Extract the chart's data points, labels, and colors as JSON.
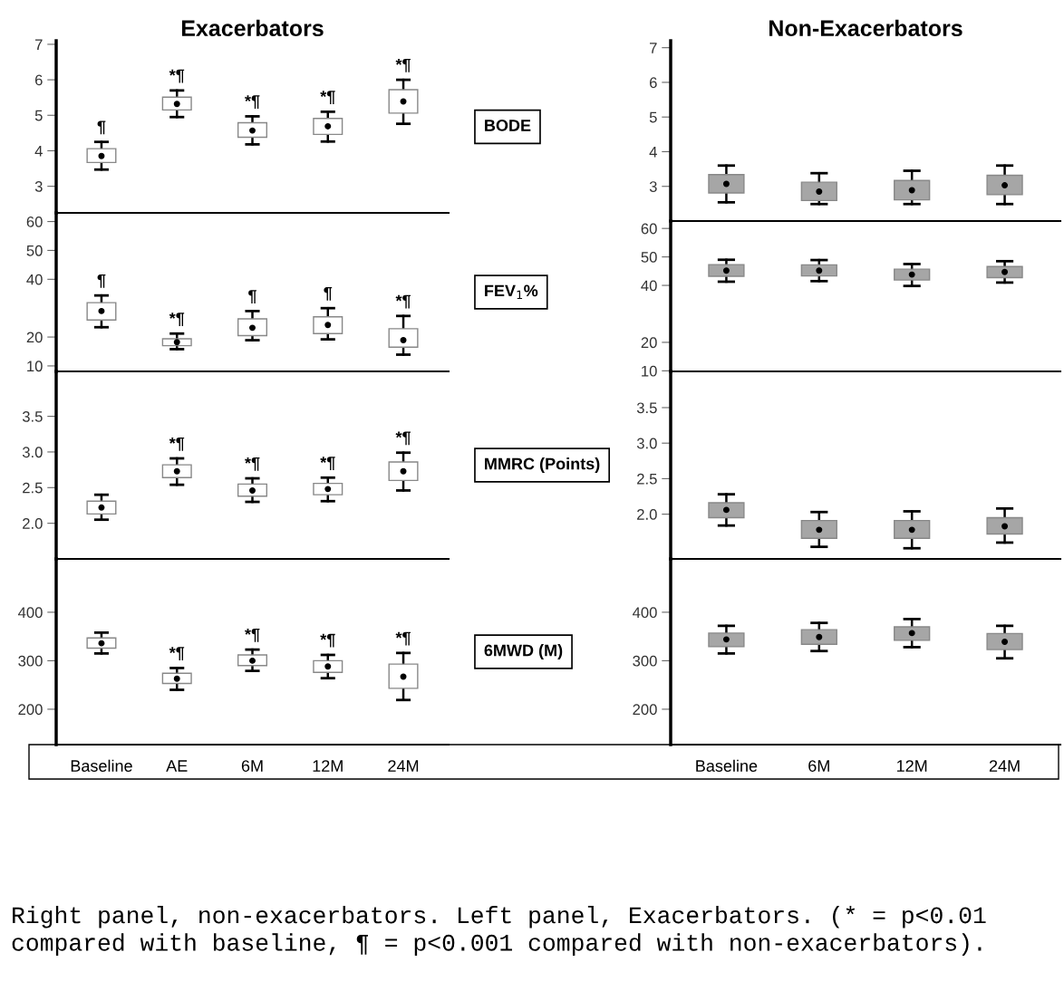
{
  "chart_data": [
    {
      "type": "box",
      "title": "Exacerbators",
      "ylabel": "BODE",
      "categories": [
        "Baseline",
        "AE",
        "6M",
        "12M",
        "24M"
      ],
      "colors": [
        "#ffffff",
        "#ffffff",
        "#ffffff",
        "#ffffff",
        "#ffffff"
      ],
      "tick_labels": "y",
      "ylim": [
        2.25,
        7.1
      ],
      "yticks": [
        3,
        4,
        5,
        6,
        7
      ],
      "boxes": [
        {
          "low": 3.47,
          "q1": 3.67,
          "median": 3.85,
          "q3": 4.06,
          "high": 4.25
        },
        {
          "low": 4.95,
          "q1": 5.15,
          "median": 5.32,
          "q3": 5.51,
          "high": 5.7
        },
        {
          "low": 4.18,
          "q1": 4.38,
          "median": 4.57,
          "q3": 4.79,
          "high": 4.97
        },
        {
          "low": 4.26,
          "q1": 4.46,
          "median": 4.69,
          "q3": 4.91,
          "high": 5.1
        },
        {
          "low": 4.76,
          "q1": 5.06,
          "median": 5.39,
          "q3": 5.72,
          "high": 6.0
        }
      ],
      "annotations": [
        {
          "text": "¶",
          "x": "Baseline",
          "y": 4.25
        },
        {
          "text": "*¶",
          "x": "AE",
          "y": 5.7
        },
        {
          "text": "*¶",
          "x": "6M",
          "y": 4.97
        },
        {
          "text": "*¶",
          "x": "12M",
          "y": 5.1
        },
        {
          "text": "*¶",
          "x": "24M",
          "y": 6.0
        },
        "Right panel, non-exacerbators. Left panel, Exacerbators. (* = p<0.01 compared with baseline, ¶ = p<0.001 compared with non-exacerbators)."
      ]
    },
    {
      "type": "box",
      "title": "Non-Exacerbators",
      "categories": [
        "Baseline",
        "6M",
        "12M",
        "24M"
      ],
      "colors": [
        "#a6a6a6",
        "#a6a6a6",
        "#a6a6a6",
        "#a6a6a6"
      ],
      "tick_labels": "y",
      "ylim": [
        2.0,
        7.2
      ],
      "yticks": [
        3,
        4,
        5,
        6,
        7
      ],
      "boxes": [
        {
          "low": 2.54,
          "q1": 2.81,
          "median": 3.07,
          "q3": 3.34,
          "high": 3.6
        },
        {
          "low": 2.49,
          "q1": 2.59,
          "median": 2.85,
          "q3": 3.12,
          "high": 3.38
        },
        {
          "low": 2.49,
          "q1": 2.61,
          "median": 2.89,
          "q3": 3.17,
          "high": 3.45
        },
        {
          "low": 2.49,
          "q1": 2.76,
          "median": 3.03,
          "q3": 3.32,
          "high": 3.6
        }
      ]
    },
    {
      "type": "box",
      "ylabel": "FEV$_{1}$%",
      "categories": [
        "Baseline",
        "AE",
        "6M",
        "12M",
        "24M"
      ],
      "colors": [
        "#ffffff",
        "#ffffff",
        "#ffffff",
        "#ffffff",
        "#ffffff"
      ],
      "tick_labels": "y",
      "ylim": [
        8.1,
        63
      ],
      "yticks": [
        10,
        20,
        40,
        50,
        60
      ],
      "boxes": [
        {
          "low": 23.4,
          "q1": 25.9,
          "median": 29.0,
          "q3": 31.9,
          "high": 34.4
        },
        {
          "low": 15.8,
          "q1": 17.0,
          "median": 18.2,
          "q3": 19.4,
          "high": 21.2
        },
        {
          "low": 18.9,
          "q1": 20.5,
          "median": 23.2,
          "q3": 26.3,
          "high": 29.0
        },
        {
          "low": 19.2,
          "q1": 21.2,
          "median": 24.2,
          "q3": 27.0,
          "high": 30.0
        },
        {
          "low": 13.9,
          "q1": 16.5,
          "median": 18.9,
          "q3": 22.9,
          "high": 27.3
        }
      ],
      "annotations": [
        {
          "text": "¶",
          "x": "Baseline",
          "y": 34.4
        },
        {
          "text": "*¶",
          "x": "AE",
          "y": 21.2
        },
        {
          "text": "¶",
          "x": "6M",
          "y": 29.0
        },
        {
          "text": "¶",
          "x": "12M",
          "y": 30.0
        },
        {
          "text": "*¶",
          "x": "24M",
          "y": 27.3
        }
      ]
    },
    {
      "type": "box",
      "categories": [
        "Baseline",
        "6M",
        "12M",
        "24M"
      ],
      "colors": [
        "#a6a6a6",
        "#a6a6a6",
        "#a6a6a6",
        "#a6a6a6"
      ],
      "tick_labels": "y",
      "ylim": [
        9.8,
        62.6
      ],
      "yticks": [
        10,
        20,
        40,
        50,
        60
      ],
      "boxes": [
        {
          "low": 41.3,
          "q1": 43.2,
          "median": 45.2,
          "q3": 47.3,
          "high": 49.0
        },
        {
          "low": 41.5,
          "q1": 43.3,
          "median": 45.2,
          "q3": 47.2,
          "high": 48.9
        },
        {
          "low": 39.8,
          "q1": 41.9,
          "median": 43.8,
          "q3": 45.7,
          "high": 47.5
        },
        {
          "low": 41.0,
          "q1": 42.7,
          "median": 44.7,
          "q3": 46.6,
          "high": 48.5
        }
      ]
    },
    {
      "type": "box",
      "ylabel": "MMRC (Points)",
      "categories": [
        "Baseline",
        "AE",
        "6M",
        "12M",
        "24M"
      ],
      "colors": [
        "#ffffff",
        "#ffffff",
        "#ffffff",
        "#ffffff",
        "#ffffff"
      ],
      "tick_labels": "y",
      "ylim": [
        1.5,
        4.13
      ],
      "yticks": [
        {
          "value": 2,
          "label": "2.0"
        },
        {
          "value": 2.5,
          "label": "2.5"
        },
        {
          "value": 3,
          "label": "3.0"
        },
        {
          "value": 3.5,
          "label": "3.5"
        }
      ],
      "boxes": [
        {
          "low": 2.05,
          "q1": 2.13,
          "median": 2.22,
          "q3": 2.31,
          "high": 2.4
        },
        {
          "low": 2.54,
          "q1": 2.64,
          "median": 2.73,
          "q3": 2.82,
          "high": 2.91
        },
        {
          "low": 2.3,
          "q1": 2.38,
          "median": 2.46,
          "q3": 2.55,
          "high": 2.63
        },
        {
          "low": 2.31,
          "q1": 2.4,
          "median": 2.48,
          "q3": 2.56,
          "high": 2.64
        },
        {
          "low": 2.46,
          "q1": 2.6,
          "median": 2.73,
          "q3": 2.86,
          "high": 2.99
        }
      ],
      "annotations": [
        {
          "text": "*¶",
          "x": "AE",
          "y": 2.91
        },
        {
          "text": "*¶",
          "x": "6M",
          "y": 2.63
        },
        {
          "text": "*¶",
          "x": "12M",
          "y": 2.64
        },
        {
          "text": "*¶",
          "x": "24M",
          "y": 2.99
        }
      ]
    },
    {
      "type": "box",
      "categories": [
        "Baseline",
        "6M",
        "12M",
        "24M"
      ],
      "colors": [
        "#a6a6a6",
        "#a6a6a6",
        "#a6a6a6",
        "#a6a6a6"
      ],
      "tick_labels": "y",
      "ylim": [
        1.37,
        4.01
      ],
      "yticks": [
        {
          "value": 2,
          "label": "2.0"
        },
        {
          "value": 2.5,
          "label": "2.5"
        },
        {
          "value": 3,
          "label": "3.0"
        },
        {
          "value": 3.5,
          "label": "3.5"
        }
      ],
      "boxes": [
        {
          "low": 1.84,
          "q1": 1.95,
          "median": 2.06,
          "q3": 2.16,
          "high": 2.28
        },
        {
          "low": 1.54,
          "q1": 1.66,
          "median": 1.78,
          "q3": 1.91,
          "high": 2.03
        },
        {
          "low": 1.52,
          "q1": 1.66,
          "median": 1.78,
          "q3": 1.91,
          "high": 2.04
        },
        {
          "low": 1.6,
          "q1": 1.72,
          "median": 1.83,
          "q3": 1.95,
          "high": 2.08
        }
      ]
    },
    {
      "type": "box",
      "ylabel": "6MWD (M)",
      "categories": [
        "Baseline",
        "AE",
        "6M",
        "12M",
        "24M"
      ],
      "colors": [
        "#ffffff",
        "#ffffff",
        "#ffffff",
        "#ffffff",
        "#ffffff"
      ],
      "ylim": [
        127,
        510
      ],
      "yticks": [
        200,
        300,
        400
      ],
      "boxes": [
        {
          "low": 315,
          "q1": 326,
          "median": 336,
          "q3": 347,
          "high": 358
        },
        {
          "low": 240,
          "q1": 253,
          "median": 263,
          "q3": 274,
          "high": 285
        },
        {
          "low": 279,
          "q1": 290,
          "median": 300,
          "q3": 312,
          "high": 323
        },
        {
          "low": 264,
          "q1": 276,
          "median": 288,
          "q3": 300,
          "high": 312
        },
        {
          "low": 219,
          "q1": 243,
          "median": 267,
          "q3": 293,
          "high": 316
        }
      ],
      "annotations": [
        {
          "text": "*¶",
          "x": "AE",
          "y": 285
        },
        {
          "text": "*¶",
          "x": "6M",
          "y": 323
        },
        {
          "text": "*¶",
          "x": "12M",
          "y": 312
        },
        {
          "text": "*¶",
          "x": "24M",
          "y": 316
        }
      ]
    },
    {
      "type": "box",
      "categories": [
        "Baseline",
        "6M",
        "12M",
        "24M"
      ],
      "colors": [
        "#a6a6a6",
        "#a6a6a6",
        "#a6a6a6",
        "#a6a6a6"
      ],
      "ylim": [
        127,
        510
      ],
      "yticks": [
        200,
        300,
        400
      ],
      "boxes": [
        {
          "low": 315,
          "q1": 329,
          "median": 344,
          "q3": 357,
          "high": 372
        },
        {
          "low": 320,
          "q1": 334,
          "median": 349,
          "q3": 364,
          "high": 378
        },
        {
          "low": 328,
          "q1": 342,
          "median": 357,
          "q3": 370,
          "high": 386
        },
        {
          "low": 305,
          "q1": 323,
          "median": 339,
          "q3": 356,
          "high": 372
        }
      ]
    }
  ]
}
